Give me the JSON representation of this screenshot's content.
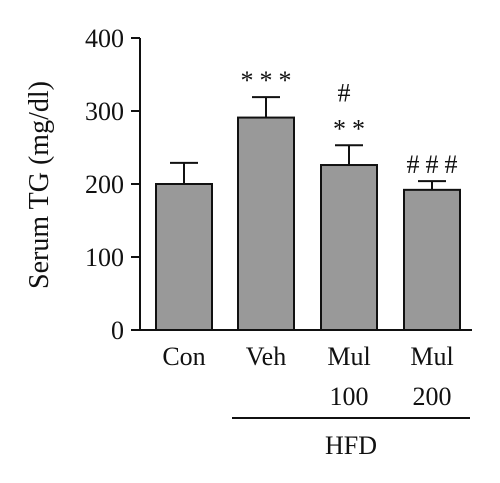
{
  "chart_data": {
    "type": "bar",
    "ylabel": "Serum TG (mg/dl)",
    "ylim": [
      0,
      400
    ],
    "yticks": [
      "0",
      "100",
      "200",
      "300",
      "400"
    ],
    "ytick_values": [
      0,
      100,
      200,
      300,
      400
    ],
    "categories": [
      {
        "line1": "Con",
        "line2": ""
      },
      {
        "line1": "Veh",
        "line2": ""
      },
      {
        "line1": "Mul",
        "line2": "100"
      },
      {
        "line1": "Mul",
        "line2": "200"
      }
    ],
    "values": [
      200,
      291,
      226,
      192
    ],
    "errors": [
      29,
      28,
      27,
      12
    ],
    "significance_top": [
      "",
      "",
      "#",
      ""
    ],
    "significance_bottom": [
      "",
      "***",
      "**",
      "###"
    ],
    "group_label": "HFD",
    "bar_color": "#999999",
    "edge_color": "#111111"
  }
}
